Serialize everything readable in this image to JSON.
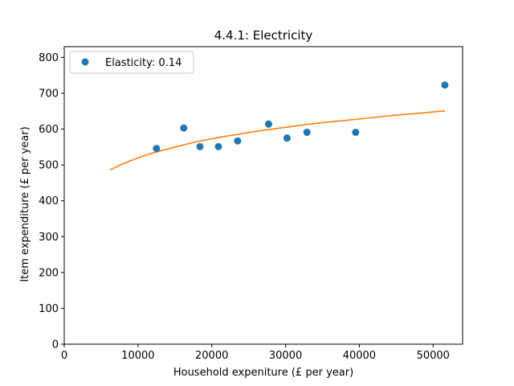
{
  "chart_data": {
    "type": "scatter",
    "title": "4.4.1: Electricity",
    "xlabel": "Household expeniture (£ per year)",
    "ylabel": "Item expenditure (£ per year)",
    "xlim": [
      0,
      54000
    ],
    "ylim": [
      0,
      830
    ],
    "xticks": [
      0,
      10000,
      20000,
      30000,
      40000,
      50000
    ],
    "xtick_labels": [
      "0",
      "10000",
      "20000",
      "30000",
      "40000",
      "50000"
    ],
    "yticks": [
      0,
      100,
      200,
      300,
      400,
      500,
      600,
      700,
      800
    ],
    "ytick_labels": [
      "0",
      "100",
      "200",
      "300",
      "400",
      "500",
      "600",
      "700",
      "800"
    ],
    "grid": false,
    "legend_position": "top-left",
    "series": [
      {
        "name": "Elasticity: 0.14",
        "kind": "scatter",
        "color": "#1f77b4",
        "x": [
          12500,
          16200,
          18400,
          20900,
          23500,
          27700,
          30200,
          32900,
          39500,
          51600
        ],
        "y": [
          546,
          603,
          551,
          551,
          567,
          614,
          575,
          591,
          591,
          723
        ]
      },
      {
        "kind": "line",
        "color": "#ff7f0e",
        "x": [
          6200,
          7500,
          9000,
          11000,
          13000,
          15000,
          18000,
          21000,
          24000,
          27000,
          30000,
          33000,
          36000,
          40000,
          44000,
          48000,
          51600
        ],
        "y": [
          486,
          499,
          512,
          527,
          539,
          550,
          565,
          577,
          587,
          597,
          605,
          613,
          620,
          628,
          637,
          644,
          651
        ]
      }
    ]
  }
}
